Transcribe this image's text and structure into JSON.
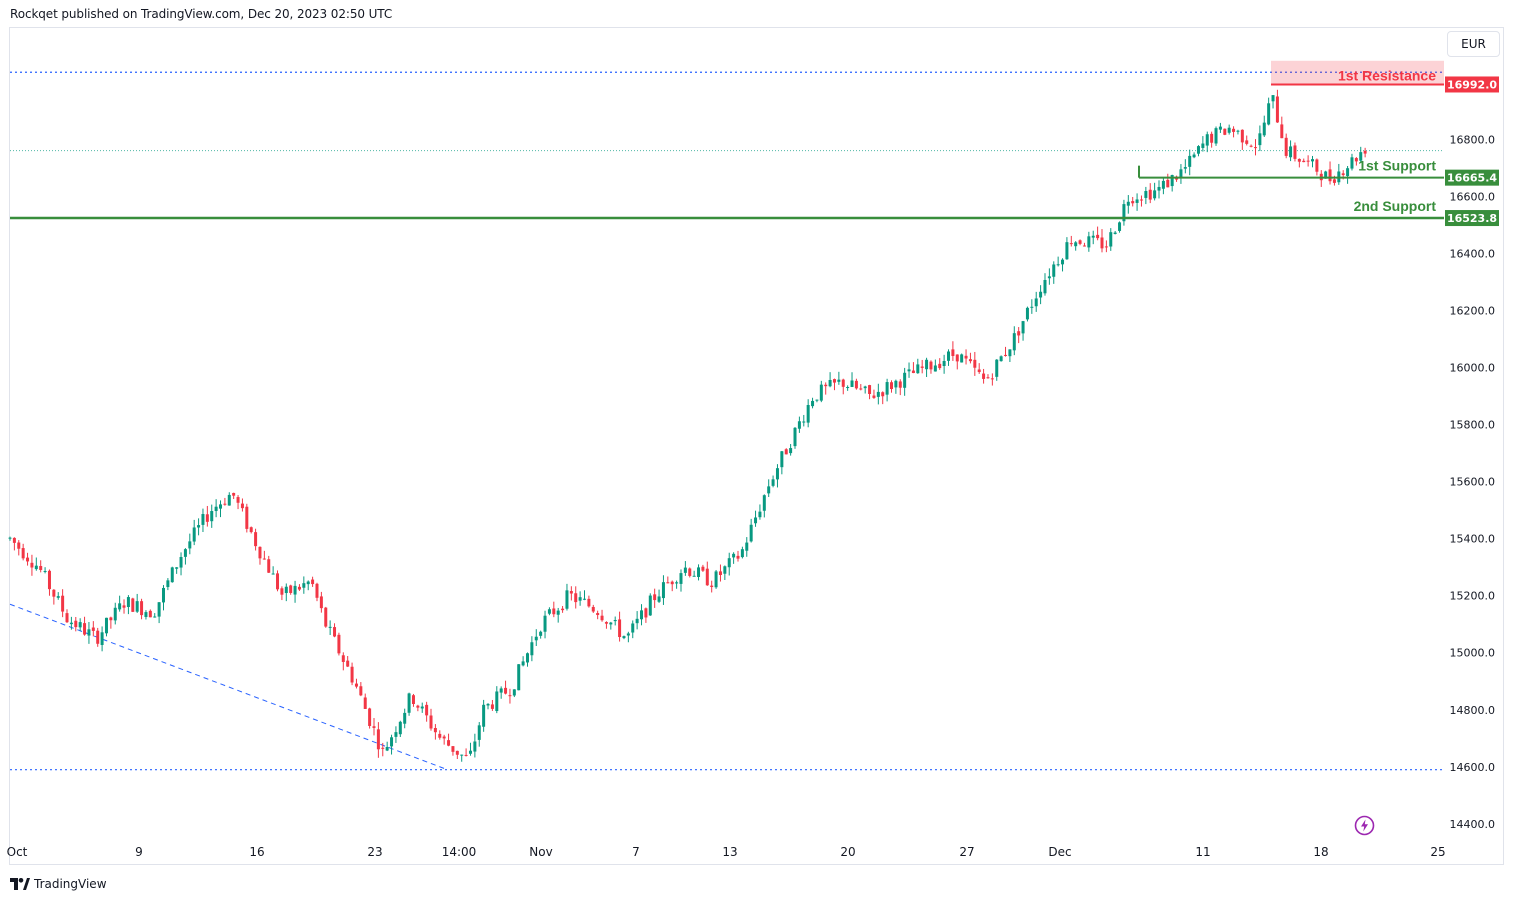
{
  "header": {
    "publish_line": "Rockqet published on TradingView.com, Dec 20, 2023 02:50 UTC"
  },
  "currency_button": "EUR",
  "footer": {
    "brand": "TradingView"
  },
  "icons": {
    "logo": "tradingview-logo-icon",
    "bolt": "lightning-bolt-icon"
  },
  "colors": {
    "up": "#089981",
    "down": "#f23645",
    "resistance": "#f23645",
    "support": "#388e3c",
    "guide": "#2962ff"
  },
  "chart_data": {
    "type": "candlestick",
    "title": "",
    "currency": "EUR",
    "ylim": [
      14340,
      17190
    ],
    "y_ticks": [
      14400,
      14600,
      14800,
      15000,
      15200,
      15400,
      15600,
      15800,
      16000,
      16200,
      16400,
      16600,
      16800
    ],
    "y_tick_labels": [
      "14400.0",
      "14600.0",
      "14800.0",
      "15000.0",
      "15200.0",
      "15400.0",
      "15600.0",
      "15800.0",
      "16000.0",
      "16200.0",
      "16400.0",
      "16600.0",
      "16800.0"
    ],
    "x_labels": [
      "Oct",
      "9",
      "16",
      "23",
      "14:00",
      "Nov",
      "7",
      "13",
      "20",
      "27",
      "Dec",
      "11",
      "18",
      "25"
    ],
    "levels": [
      {
        "name": "1st Resistance",
        "value": 16992.0,
        "label": "16992.0",
        "kind": "resistance"
      },
      {
        "name": "1st Support",
        "value": 16665.4,
        "label": "16665.4",
        "kind": "support"
      },
      {
        "name": "2nd Support",
        "value": 16523.8,
        "label": "16523.8",
        "kind": "support"
      }
    ],
    "dotted_lines": [
      17035,
      14590
    ],
    "last_price_line": 16760,
    "trendline": {
      "from": [
        0,
        15170
      ],
      "to": [
        0.305,
        14590
      ]
    },
    "path_waypoints": [
      [
        0.0,
        15400
      ],
      [
        0.02,
        15300
      ],
      [
        0.04,
        15120
      ],
      [
        0.06,
        15050
      ],
      [
        0.08,
        15180
      ],
      [
        0.1,
        15140
      ],
      [
        0.12,
        15350
      ],
      [
        0.14,
        15500
      ],
      [
        0.155,
        15560
      ],
      [
        0.17,
        15400
      ],
      [
        0.19,
        15200
      ],
      [
        0.21,
        15250
      ],
      [
        0.22,
        15100
      ],
      [
        0.24,
        14900
      ],
      [
        0.26,
        14650
      ],
      [
        0.28,
        14850
      ],
      [
        0.3,
        14700
      ],
      [
        0.32,
        14620
      ],
      [
        0.33,
        14800
      ],
      [
        0.35,
        14880
      ],
      [
        0.37,
        15100
      ],
      [
        0.39,
        15200
      ],
      [
        0.41,
        15150
      ],
      [
        0.43,
        15050
      ],
      [
        0.45,
        15200
      ],
      [
        0.47,
        15300
      ],
      [
        0.49,
        15250
      ],
      [
        0.51,
        15350
      ],
      [
        0.53,
        15600
      ],
      [
        0.56,
        15900
      ],
      [
        0.58,
        15950
      ],
      [
        0.6,
        15900
      ],
      [
        0.63,
        15980
      ],
      [
        0.66,
        16050
      ],
      [
        0.68,
        15950
      ],
      [
        0.7,
        16100
      ],
      [
        0.72,
        16300
      ],
      [
        0.74,
        16450
      ],
      [
        0.765,
        16430
      ],
      [
        0.78,
        16600
      ],
      [
        0.8,
        16620
      ],
      [
        0.82,
        16700
      ],
      [
        0.835,
        16800
      ],
      [
        0.85,
        16840
      ],
      [
        0.87,
        16780
      ],
      [
        0.88,
        16950
      ],
      [
        0.89,
        16760
      ],
      [
        0.91,
        16700
      ],
      [
        0.92,
        16660
      ],
      [
        0.935,
        16720
      ],
      [
        0.945,
        16770
      ]
    ]
  }
}
